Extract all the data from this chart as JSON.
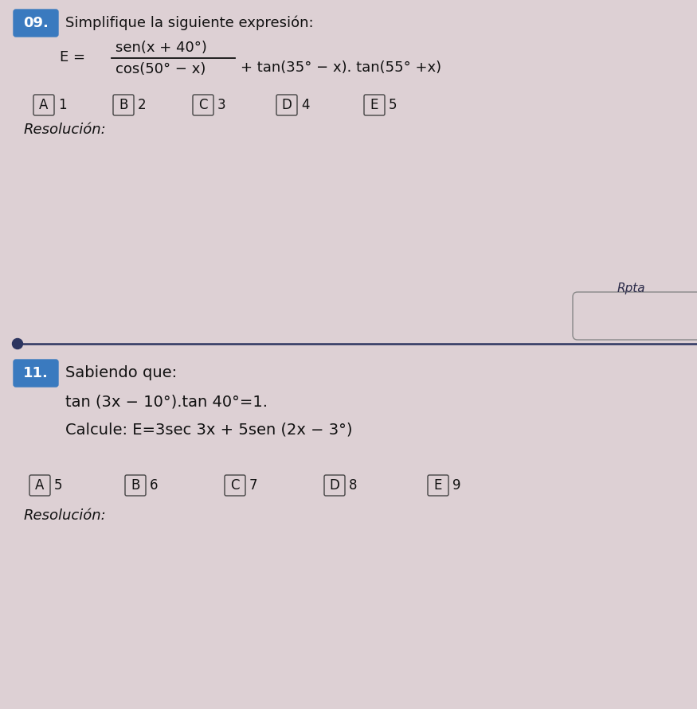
{
  "bg_color": "#ddd0d4",
  "problem09": {
    "number": "09.",
    "number_bg": "#3a7abf",
    "number_color": "white",
    "title": "Simplifique la siguiente expresión:",
    "formula_num": "sen(x + 40°)",
    "formula_den": "cos(50° − x)",
    "formula_plus": "+ tan(35° − x). tan(55° +x)",
    "E_prefix": "E =",
    "options": [
      {
        "label": "A",
        "value": "1"
      },
      {
        "label": "B",
        "value": "2"
      },
      {
        "label": "C",
        "value": "3"
      },
      {
        "label": "D",
        "value": "4"
      },
      {
        "label": "E",
        "value": "5"
      }
    ],
    "resolucion": "Resolución:",
    "rpta_text": "Rpta"
  },
  "divider_color": "#2c3560",
  "problem11": {
    "number": "11.",
    "number_bg": "#3a7abf",
    "number_color": "white",
    "intro": "Sabiendo que:",
    "condition": "tan (3x − 10°).tan 40°=1.",
    "calcule": "Calcule: E=3sec 3x + 5sen (2x − 3°)",
    "options": [
      {
        "label": "A",
        "value": "5"
      },
      {
        "label": "B",
        "value": "6"
      },
      {
        "label": "C",
        "value": "7"
      },
      {
        "label": "D",
        "value": "8"
      },
      {
        "label": "E",
        "value": "9"
      }
    ],
    "resolucion": "Resolución:"
  },
  "font_size_title": 13,
  "font_size_formula": 13,
  "font_size_options": 12,
  "font_size_resolucion": 13,
  "font_size_badge": 13,
  "font_size_p11_text": 14
}
